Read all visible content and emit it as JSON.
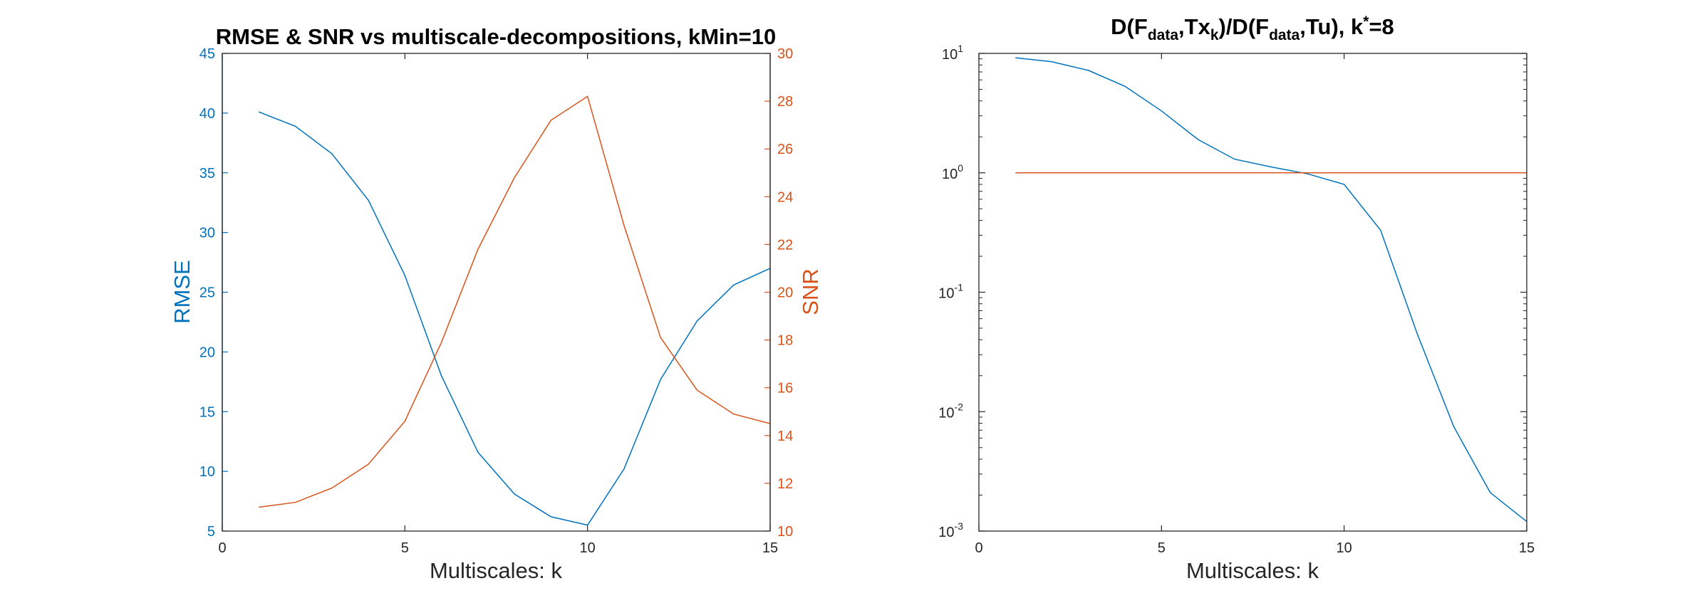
{
  "colors": {
    "blue": "#0072BD",
    "orange": "#D95319",
    "axis": "#262626"
  },
  "chart_data": [
    {
      "type": "line",
      "title": "RMSE & SNR vs multiscale-decompositions, kMin=10",
      "xlabel": "Multiscales: k",
      "ylabel_left": "RMSE",
      "ylabel_right": "SNR",
      "xlim": [
        0,
        15
      ],
      "ylim_left": [
        5,
        45
      ],
      "ylim_right": [
        10,
        30
      ],
      "x_ticks": [
        "0",
        "5",
        "10",
        "15"
      ],
      "y_ticks_left": [
        "5",
        "10",
        "15",
        "20",
        "25",
        "30",
        "35",
        "40",
        "45"
      ],
      "y_ticks_right": [
        "10",
        "12",
        "14",
        "16",
        "18",
        "20",
        "22",
        "24",
        "26",
        "28",
        "30"
      ],
      "x": [
        1,
        2,
        3,
        4,
        5,
        6,
        7,
        8,
        9,
        10,
        11,
        12,
        13,
        14,
        15
      ],
      "series": [
        {
          "axis": "left",
          "color": "#0072BD",
          "values": [
            40.1,
            38.9,
            36.6,
            32.7,
            26.4,
            18.0,
            11.6,
            8.1,
            6.2,
            5.5,
            10.2,
            17.7,
            22.6,
            25.6,
            27.0
          ]
        },
        {
          "axis": "right",
          "color": "#D95319",
          "values": [
            11.0,
            11.2,
            11.8,
            12.8,
            14.6,
            17.9,
            21.8,
            24.8,
            27.2,
            28.2,
            22.8,
            18.1,
            15.9,
            14.9,
            14.5
          ]
        }
      ]
    },
    {
      "type": "line",
      "title": "D(Fdata,Txk)/D(Fdata,Tu), k*=8",
      "title_parts": {
        "a": "D(F",
        "b": "data",
        "c": ",Tx",
        "d": "k",
        "e": ")/D(F",
        "f": "data",
        "g": ",Tu), k",
        "h": "*",
        "i": "=8"
      },
      "xlabel": "Multiscales: k",
      "xlim": [
        0,
        15
      ],
      "ylim": [
        0.001,
        10
      ],
      "yscale": "log",
      "x_ticks": [
        "0",
        "5",
        "10",
        "15"
      ],
      "y_ticks": [
        {
          "base": "10",
          "exp": "-3"
        },
        {
          "base": "10",
          "exp": "-2"
        },
        {
          "base": "10",
          "exp": "-1"
        },
        {
          "base": "10",
          "exp": "0"
        },
        {
          "base": "10",
          "exp": "1"
        }
      ],
      "x": [
        1,
        2,
        3,
        4,
        5,
        6,
        7,
        8,
        9,
        10,
        11,
        12,
        13,
        14,
        15
      ],
      "series": [
        {
          "color": "#0072BD",
          "values": [
            9.2,
            8.5,
            7.2,
            5.3,
            3.3,
            1.9,
            1.3,
            1.12,
            0.98,
            0.8,
            0.33,
            0.045,
            0.0075,
            0.0021,
            0.0012
          ]
        },
        {
          "color": "#D95319",
          "values": [
            1,
            1,
            1,
            1,
            1,
            1,
            1,
            1,
            1,
            1,
            1,
            1,
            1,
            1,
            1
          ]
        }
      ]
    }
  ]
}
